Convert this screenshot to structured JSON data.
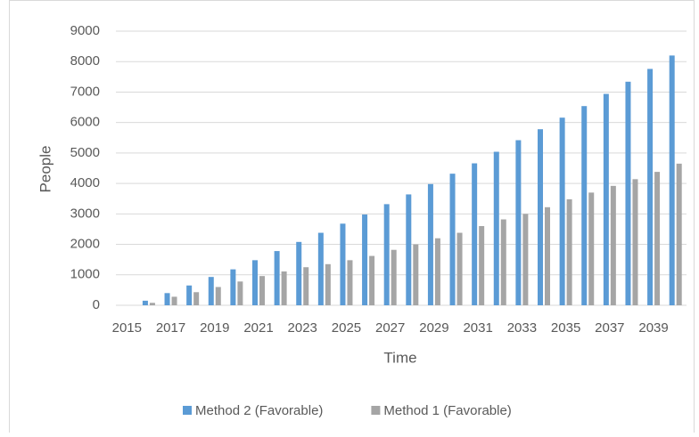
{
  "chart_data": {
    "type": "bar",
    "x_label": "Time",
    "y_label": "People",
    "categories": [
      "2015",
      null,
      "2017",
      null,
      "2019",
      null,
      "2021",
      null,
      "2023",
      null,
      "2025",
      null,
      "2027",
      null,
      "2029",
      null,
      "2031",
      null,
      "2033",
      null,
      "2035",
      null,
      "2037",
      null,
      "2039",
      null
    ],
    "series": [
      {
        "name": "Method 2 (Favorable)",
        "color": "#5b9bd5",
        "values": [
          0,
          150,
          400,
          650,
          930,
          1180,
          1480,
          1780,
          2080,
          2380,
          2680,
          2980,
          3320,
          3640,
          3980,
          4320,
          4660,
          5040,
          5420,
          5780,
          6160,
          6540,
          6940,
          7340,
          7760,
          8200
        ]
      },
      {
        "name": "Method 1 (Favorable)",
        "color": "#a5a5a5",
        "values": [
          0,
          80,
          280,
          430,
          600,
          780,
          960,
          1110,
          1250,
          1350,
          1480,
          1620,
          1820,
          2000,
          2200,
          2380,
          2600,
          2820,
          3000,
          3220,
          3480,
          3700,
          3920,
          4140,
          4380,
          4650
        ]
      }
    ],
    "ylim": [
      0,
      9000
    ],
    "yticks": [
      0,
      1000,
      2000,
      3000,
      4000,
      5000,
      6000,
      7000,
      8000,
      9000
    ],
    "grid": true,
    "legend": "bottom"
  }
}
